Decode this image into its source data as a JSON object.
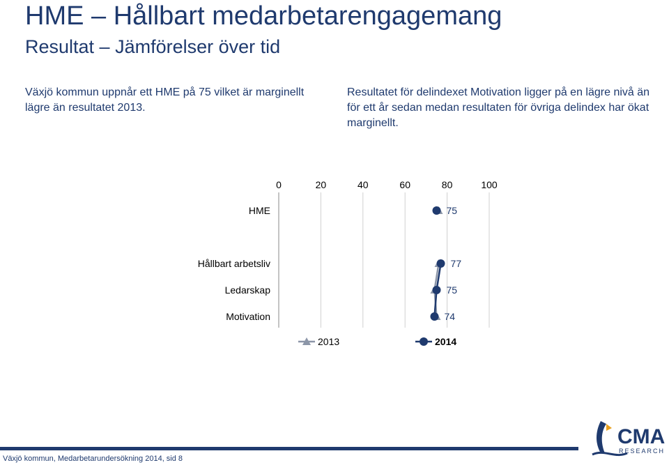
{
  "header": {
    "title": "HME – Hållbart medarbetarengagemang",
    "subtitle": "Resultat – Jämförelser över tid"
  },
  "text": {
    "left": "Växjö kommun uppnår ett HME på 75 vilket är marginellt lägre än resultatet 2013.",
    "right": "Resultatet för delindexet Motivation ligger på en lägre nivå än för ett år sedan medan resultaten för övriga delindex har ökat marginellt."
  },
  "chart_data": {
    "type": "line",
    "orientation": "horizontal",
    "xlim": [
      0,
      100
    ],
    "xticks": [
      "0",
      "20",
      "40",
      "60",
      "80",
      "100"
    ],
    "grid": true,
    "categories": [
      "HME",
      "Hållbart arbetsliv",
      "Ledarskap",
      "Motivation"
    ],
    "series": [
      {
        "name": "2013",
        "values": [
          76,
          76,
          74,
          75
        ],
        "color": "#8c96a8",
        "marker": "triangle"
      },
      {
        "name": "2014",
        "values": [
          75,
          77,
          75,
          74
        ],
        "color": "#1f3a6e",
        "marker": "circle"
      }
    ],
    "data_labels": [
      "75",
      "77",
      "75",
      "74"
    ],
    "legend_position": "bottom"
  },
  "footer": {
    "text": "Växjö kommun, Medarbetarundersökning 2014, sid 8"
  },
  "logo": {
    "name": "CMA",
    "tagline": "RESEARCH",
    "primary_color": "#1f3a6e",
    "accent_color": "#e8a020"
  }
}
